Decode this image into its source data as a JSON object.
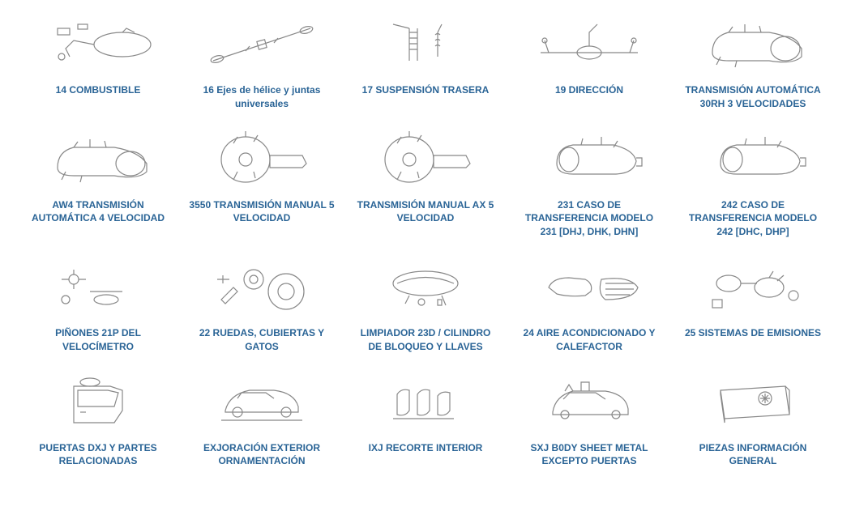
{
  "layout": {
    "columns": 5,
    "rows": 4,
    "background_color": "#ffffff",
    "link_color": "#2a6496",
    "sketch_color": "#888888",
    "label_fontsize": 12,
    "label_fontweight": "bold"
  },
  "items": [
    {
      "label": "14 COMBUSTIBLE",
      "icon": "fuel-system"
    },
    {
      "label": "16 Ejes de hélice y juntas universales",
      "icon": "driveshaft",
      "mixedCase": true
    },
    {
      "label": "17 SUSPENSIÓN TRASERA",
      "icon": "rear-suspension"
    },
    {
      "label": "19 DIRECCIÓN",
      "icon": "steering"
    },
    {
      "label": "TRANSMISIÓN AUTOMÁTICA 30RH 3 VELOCIDADES",
      "icon": "auto-transmission"
    },
    {
      "label": "AW4 TRANSMISIÓN AUTOMÁTICA 4 VELOCIDAD",
      "icon": "auto-transmission-4"
    },
    {
      "label": "3550 TRANSMISIÓN MANUAL 5 VELOCIDAD",
      "icon": "manual-transmission"
    },
    {
      "label": "TRANSMISIÓN MANUAL AX 5 VELOCIDAD",
      "icon": "manual-transmission-ax"
    },
    {
      "label": "231 CASO DE TRANSFERENCIA MODELO 231 [DHJ, DHK, DHN]",
      "icon": "transfer-case-231"
    },
    {
      "label": "242 CASO DE TRANSFERENCIA MODELO 242 [DHC, DHP]",
      "icon": "transfer-case-242"
    },
    {
      "label": "PIÑONES 21P DEL VELOCÍMETRO",
      "icon": "speedometer-gears"
    },
    {
      "label": "22 RUEDAS, CUBIERTAS Y GATOS",
      "icon": "wheels-jacks"
    },
    {
      "label": "LIMPIADOR 23D / CILINDRO DE BLOQUEO Y LLAVES",
      "icon": "wiper-lock"
    },
    {
      "label": "24 AIRE ACONDICIONADO Y CALEFACTOR",
      "icon": "ac-heater"
    },
    {
      "label": "25 SISTEMAS DE EMISIONES",
      "icon": "emissions"
    },
    {
      "label": "PUERTAS DXJ Y PARTES RELACIONADAS",
      "icon": "doors"
    },
    {
      "label": "EXJORACIÓN EXTERIOR ORNAMENTACIÓN",
      "icon": "exterior-trim"
    },
    {
      "label": "IXJ RECORTE INTERIOR",
      "icon": "interior-trim"
    },
    {
      "label": "SXJ B0DY SHEET METAL EXCEPTO PUERTAS",
      "icon": "body-sheet-metal"
    },
    {
      "label": "PIEZAS INFORMACIÓN GENERAL",
      "icon": "info-book"
    }
  ]
}
